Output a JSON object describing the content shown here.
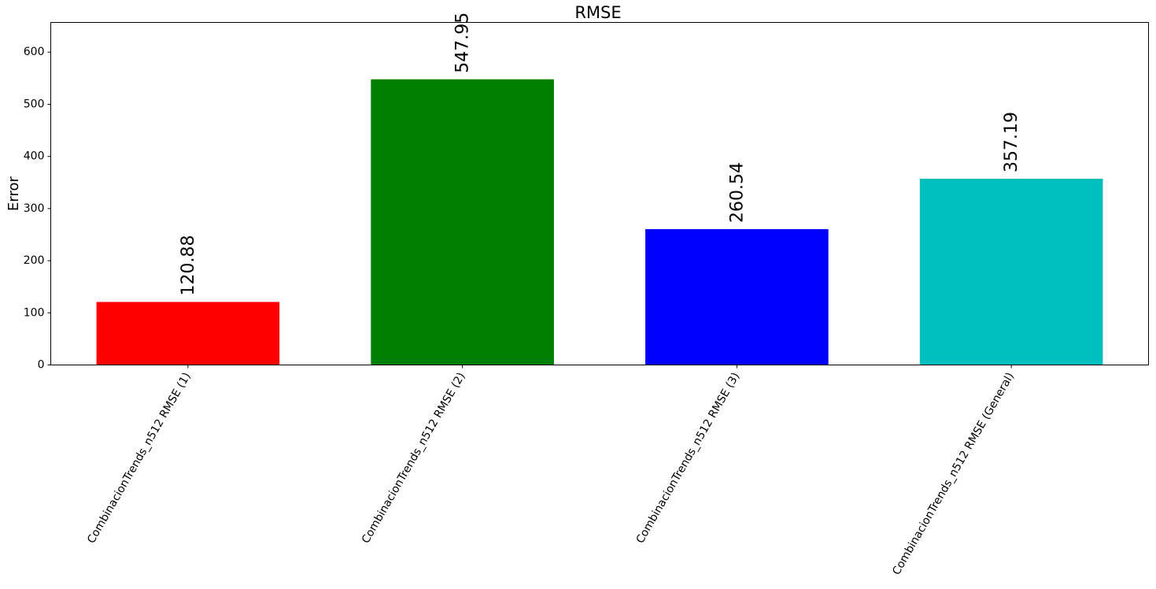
{
  "chart_data": {
    "type": "bar",
    "title": "RMSE",
    "xlabel": "",
    "ylabel": "Error",
    "categories": [
      "CombinacionTrends_n512 RMSE (1)",
      "CombinacionTrends_n512 RMSE (2)",
      "CombinacionTrends_n512 RMSE (3)",
      "CombinacionTrends_n512 RMSE (General)"
    ],
    "values": [
      120.88,
      547.95,
      260.54,
      357.19
    ],
    "value_labels": [
      "120.88",
      "547.95",
      "260.54",
      "357.19"
    ],
    "colors": [
      "#ff0000",
      "#008000",
      "#0000ff",
      "#00bfbf"
    ],
    "ylim": [
      0,
      657
    ],
    "yticks": [
      0,
      100,
      200,
      300,
      400,
      500,
      600
    ],
    "grid": false,
    "legend": "none"
  }
}
